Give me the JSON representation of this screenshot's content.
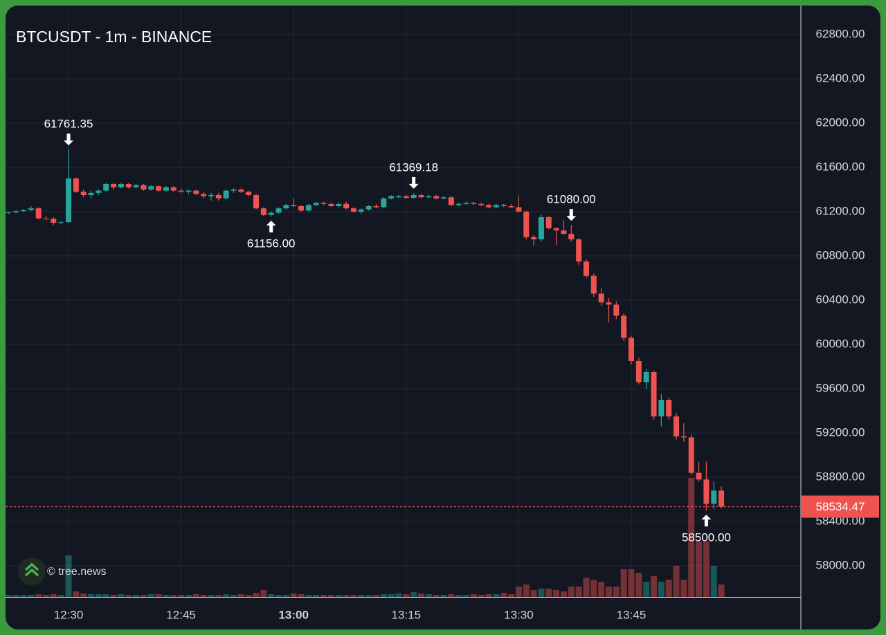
{
  "chart_data": {
    "type": "candlestick",
    "title": "BTCUSDT - 1m - BINANCE",
    "watermark": "© tree.news",
    "categories": [
      null,
      null,
      null,
      null,
      null,
      null,
      null,
      null,
      "12:30",
      null,
      null,
      null,
      null,
      null,
      null,
      null,
      null,
      null,
      null,
      null,
      null,
      null,
      null,
      "12:45",
      null,
      null,
      null,
      null,
      null,
      null,
      null,
      null,
      null,
      null,
      null,
      null,
      null,
      null,
      "13:00",
      null,
      null,
      null,
      null,
      null,
      null,
      null,
      null,
      null,
      null,
      null,
      null,
      null,
      null,
      "13:15",
      null,
      null,
      null,
      null,
      null,
      null,
      null,
      null,
      null,
      null,
      null,
      null,
      null,
      null,
      "13:30",
      null,
      null,
      null,
      null,
      null,
      null,
      null,
      null,
      null,
      null,
      null,
      null,
      null,
      null,
      "13:45",
      null,
      null,
      null,
      null,
      null,
      null,
      null,
      null,
      null,
      null,
      null,
      null
    ],
    "open": [
      61190,
      61195,
      61205,
      61215,
      61230,
      61140,
      61135,
      61100,
      61105,
      61500,
      61380,
      61350,
      61370,
      61390,
      61450,
      61420,
      61450,
      61420,
      61440,
      61400,
      61430,
      61390,
      61420,
      61390,
      61380,
      61390,
      61360,
      61340,
      61350,
      61320,
      61390,
      61400,
      61380,
      61350,
      61230,
      61170,
      61190,
      61230,
      61260,
      61250,
      61210,
      61260,
      61280,
      61270,
      61250,
      61270,
      61230,
      61200,
      61220,
      61250,
      61240,
      61320,
      61330,
      61340,
      61325,
      61350,
      61330,
      61340,
      61320,
      61330,
      61260,
      61270,
      61280,
      61270,
      61260,
      61240,
      61260,
      61250,
      61240,
      61200,
      60970,
      60950,
      61150,
      61050,
      61030,
      61000,
      60950,
      60750,
      60620,
      60460,
      60380,
      60360,
      60260,
      60060,
      59850,
      59660,
      59750,
      59350,
      59500,
      59350,
      59170,
      59160,
      58840,
      58780,
      58560,
      58680
    ],
    "high": [
      61200,
      61210,
      61225,
      61250,
      61240,
      61160,
      61150,
      61115,
      61761.35,
      61510,
      61400,
      61390,
      61400,
      61460,
      61460,
      61460,
      61460,
      61450,
      61450,
      61440,
      61440,
      61430,
      61430,
      61410,
      61400,
      61400,
      61380,
      61370,
      61370,
      61400,
      61410,
      61410,
      61390,
      61360,
      61240,
      61200,
      61240,
      61270,
      61320,
      61260,
      61270,
      61290,
      61290,
      61280,
      61280,
      61290,
      61240,
      61230,
      61260,
      61270,
      61330,
      61350,
      61350,
      61350,
      61369.18,
      61360,
      61350,
      61350,
      61340,
      61340,
      61280,
      61290,
      61290,
      61280,
      61270,
      61270,
      61270,
      61270,
      61340,
      61210,
      60990,
      61170,
      61160,
      61060,
      61120,
      61080,
      60960,
      60770,
      60640,
      60510,
      60420,
      60390,
      60280,
      60080,
      59880,
      59780,
      59760,
      59550,
      59520,
      59380,
      59290,
      59190,
      58940,
      58940,
      58760,
      58720
    ],
    "low": [
      61180,
      61185,
      61195,
      61205,
      61130,
      61120,
      61080,
      61090,
      61100,
      61370,
      61330,
      61320,
      61350,
      61380,
      61400,
      61410,
      61410,
      61410,
      61390,
      61390,
      61380,
      61380,
      61380,
      61370,
      61360,
      61350,
      61320,
      61300,
      61300,
      61310,
      61370,
      61370,
      61340,
      61220,
      61160,
      61156,
      61180,
      61220,
      61240,
      61200,
      61200,
      61250,
      61260,
      61240,
      61240,
      61220,
      61190,
      61180,
      61210,
      61230,
      61230,
      61310,
      61320,
      61320,
      61320,
      61320,
      61320,
      61310,
      61310,
      61250,
      61250,
      61260,
      61260,
      61250,
      61230,
      61230,
      61240,
      61230,
      61190,
      60950,
      60890,
      60930,
      61040,
      60900,
      60990,
      60930,
      60720,
      60600,
      60430,
      60350,
      60200,
      60230,
      60030,
      59820,
      59640,
      59600,
      59320,
      59260,
      59320,
      59140,
      59120,
      58820,
      58760,
      58500,
      58510,
      58520
    ],
    "close": [
      61195,
      61205,
      61215,
      61230,
      61140,
      61135,
      61100,
      61105,
      61500,
      61380,
      61350,
      61370,
      61390,
      61450,
      61420,
      61450,
      61420,
      61440,
      61400,
      61430,
      61390,
      61420,
      61390,
      61380,
      61390,
      61360,
      61340,
      61350,
      61320,
      61390,
      61400,
      61380,
      61350,
      61230,
      61170,
      61190,
      61230,
      61260,
      61250,
      61210,
      61260,
      61280,
      61270,
      61250,
      61270,
      61230,
      61200,
      61220,
      61250,
      61240,
      61320,
      61340,
      61340,
      61325,
      61350,
      61330,
      61340,
      61320,
      61330,
      61260,
      61270,
      61280,
      61270,
      61260,
      61240,
      61260,
      61250,
      61240,
      61200,
      60970,
      60950,
      61150,
      61050,
      61030,
      61000,
      60950,
      60750,
      60620,
      60460,
      60380,
      60360,
      60260,
      60060,
      59850,
      59660,
      59750,
      59350,
      59500,
      59350,
      59170,
      59160,
      58840,
      58780,
      58560,
      58680,
      58534.47
    ],
    "volume": [
      3,
      3,
      3,
      3,
      4,
      3,
      4,
      3,
      60,
      8,
      5,
      4,
      4,
      4,
      3,
      4,
      3,
      3,
      3,
      4,
      4,
      3,
      3,
      3,
      3,
      4,
      3,
      3,
      3,
      4,
      3,
      4,
      3,
      6,
      10,
      4,
      3,
      3,
      5,
      4,
      3,
      3,
      3,
      3,
      3,
      3,
      3,
      3,
      3,
      3,
      4,
      4,
      5,
      4,
      7,
      5,
      4,
      3,
      3,
      4,
      3,
      3,
      4,
      3,
      4,
      4,
      6,
      4,
      15,
      18,
      10,
      12,
      12,
      10,
      8,
      15,
      15,
      28,
      25,
      22,
      15,
      15,
      40,
      40,
      35,
      22,
      30,
      22,
      25,
      45,
      25,
      172,
      80,
      80,
      45,
      18
    ],
    "up_color": "#26a69a",
    "down_color": "#ef5350",
    "ylim": [
      57718.75,
      63062.5
    ],
    "yticks": [
      {
        "value": 58000,
        "label": "58000.00"
      },
      {
        "value": 58400,
        "label": "58400.00"
      },
      {
        "value": 58800,
        "label": "58800.00"
      },
      {
        "value": 59200,
        "label": "59200.00"
      },
      {
        "value": 59600,
        "label": "59600.00"
      },
      {
        "value": 60000,
        "label": "60000.00"
      },
      {
        "value": 60400,
        "label": "60400.00"
      },
      {
        "value": 60800,
        "label": "60800.00"
      },
      {
        "value": 61200,
        "label": "61200.00"
      },
      {
        "value": 61600,
        "label": "61600.00"
      },
      {
        "value": 62000,
        "label": "62000.00"
      },
      {
        "value": 62400,
        "label": "62400.00"
      },
      {
        "value": 62800,
        "label": "62800.00"
      }
    ],
    "grid": true,
    "price_line": {
      "value": 58534.47,
      "label": "58534.47"
    },
    "annotations": [
      {
        "value": 61761.35,
        "label": "61761.35"
      },
      {
        "value": 61080,
        "label": "61080.00"
      },
      {
        "value": 61156,
        "label": "61156.00"
      },
      {
        "value": 61369.18,
        "label": "61369.18"
      },
      {
        "value": 58500,
        "label": "58500.00"
      }
    ]
  }
}
